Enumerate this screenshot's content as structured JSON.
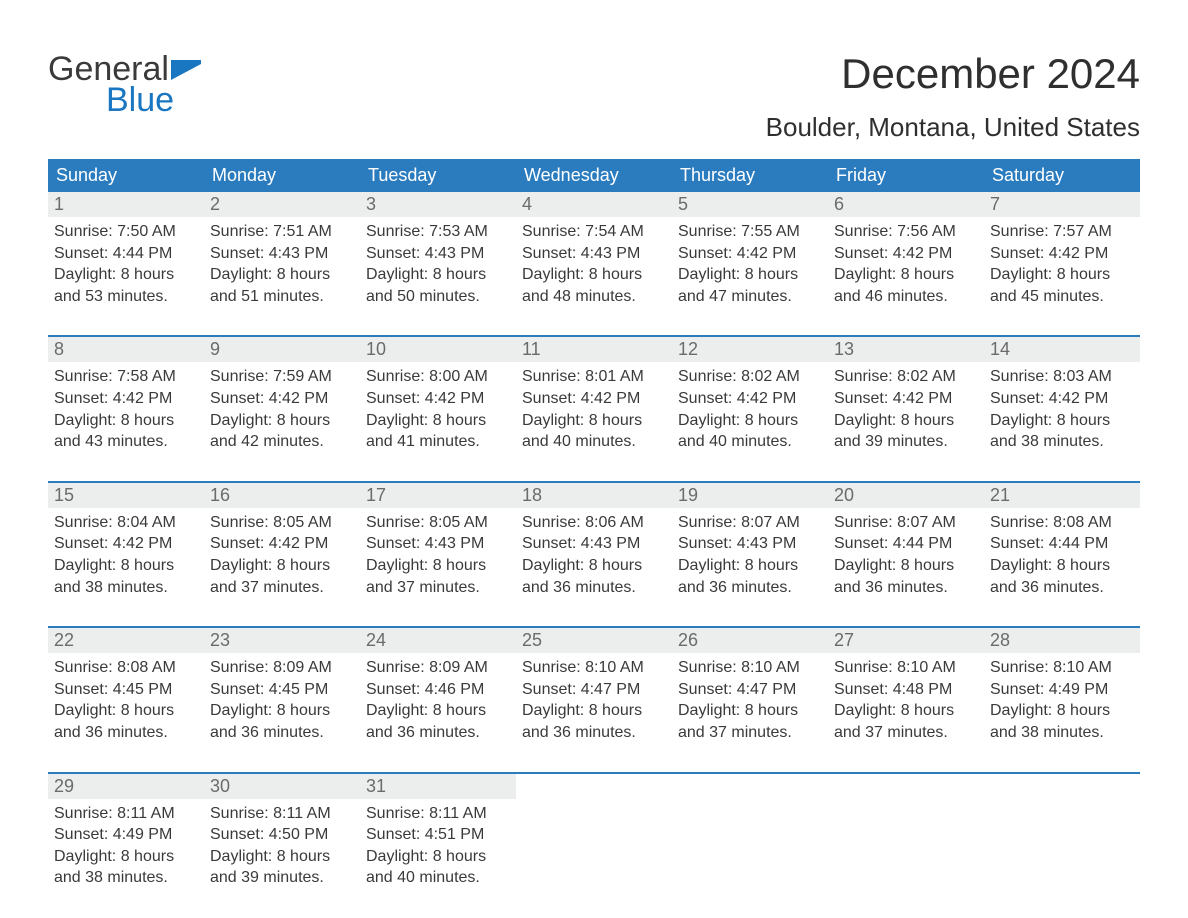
{
  "logo": {
    "text1": "General",
    "text2": "Blue",
    "flag_color": "#1976c1"
  },
  "title": "December 2024",
  "location": "Boulder, Montana, United States",
  "colors": {
    "header_bg": "#2b7cbf",
    "header_text": "#ffffff",
    "daynum_bg": "#eceded",
    "daynum_text": "#6b6b6b",
    "body_text": "#3a3a3a",
    "row_border": "#2b7cbf",
    "page_bg": "#ffffff"
  },
  "typography": {
    "title_fontsize": 42,
    "location_fontsize": 26,
    "dow_fontsize": 18,
    "daynum_fontsize": 18,
    "body_fontsize": 16,
    "logo_fontsize": 34
  },
  "day_names": [
    "Sunday",
    "Monday",
    "Tuesday",
    "Wednesday",
    "Thursday",
    "Friday",
    "Saturday"
  ],
  "weeks": [
    [
      {
        "n": "1",
        "sunrise": "Sunrise: 7:50 AM",
        "sunset": "Sunset: 4:44 PM",
        "dl1": "Daylight: 8 hours",
        "dl2": "and 53 minutes."
      },
      {
        "n": "2",
        "sunrise": "Sunrise: 7:51 AM",
        "sunset": "Sunset: 4:43 PM",
        "dl1": "Daylight: 8 hours",
        "dl2": "and 51 minutes."
      },
      {
        "n": "3",
        "sunrise": "Sunrise: 7:53 AM",
        "sunset": "Sunset: 4:43 PM",
        "dl1": "Daylight: 8 hours",
        "dl2": "and 50 minutes."
      },
      {
        "n": "4",
        "sunrise": "Sunrise: 7:54 AM",
        "sunset": "Sunset: 4:43 PM",
        "dl1": "Daylight: 8 hours",
        "dl2": "and 48 minutes."
      },
      {
        "n": "5",
        "sunrise": "Sunrise: 7:55 AM",
        "sunset": "Sunset: 4:42 PM",
        "dl1": "Daylight: 8 hours",
        "dl2": "and 47 minutes."
      },
      {
        "n": "6",
        "sunrise": "Sunrise: 7:56 AM",
        "sunset": "Sunset: 4:42 PM",
        "dl1": "Daylight: 8 hours",
        "dl2": "and 46 minutes."
      },
      {
        "n": "7",
        "sunrise": "Sunrise: 7:57 AM",
        "sunset": "Sunset: 4:42 PM",
        "dl1": "Daylight: 8 hours",
        "dl2": "and 45 minutes."
      }
    ],
    [
      {
        "n": "8",
        "sunrise": "Sunrise: 7:58 AM",
        "sunset": "Sunset: 4:42 PM",
        "dl1": "Daylight: 8 hours",
        "dl2": "and 43 minutes."
      },
      {
        "n": "9",
        "sunrise": "Sunrise: 7:59 AM",
        "sunset": "Sunset: 4:42 PM",
        "dl1": "Daylight: 8 hours",
        "dl2": "and 42 minutes."
      },
      {
        "n": "10",
        "sunrise": "Sunrise: 8:00 AM",
        "sunset": "Sunset: 4:42 PM",
        "dl1": "Daylight: 8 hours",
        "dl2": "and 41 minutes."
      },
      {
        "n": "11",
        "sunrise": "Sunrise: 8:01 AM",
        "sunset": "Sunset: 4:42 PM",
        "dl1": "Daylight: 8 hours",
        "dl2": "and 40 minutes."
      },
      {
        "n": "12",
        "sunrise": "Sunrise: 8:02 AM",
        "sunset": "Sunset: 4:42 PM",
        "dl1": "Daylight: 8 hours",
        "dl2": "and 40 minutes."
      },
      {
        "n": "13",
        "sunrise": "Sunrise: 8:02 AM",
        "sunset": "Sunset: 4:42 PM",
        "dl1": "Daylight: 8 hours",
        "dl2": "and 39 minutes."
      },
      {
        "n": "14",
        "sunrise": "Sunrise: 8:03 AM",
        "sunset": "Sunset: 4:42 PM",
        "dl1": "Daylight: 8 hours",
        "dl2": "and 38 minutes."
      }
    ],
    [
      {
        "n": "15",
        "sunrise": "Sunrise: 8:04 AM",
        "sunset": "Sunset: 4:42 PM",
        "dl1": "Daylight: 8 hours",
        "dl2": "and 38 minutes."
      },
      {
        "n": "16",
        "sunrise": "Sunrise: 8:05 AM",
        "sunset": "Sunset: 4:42 PM",
        "dl1": "Daylight: 8 hours",
        "dl2": "and 37 minutes."
      },
      {
        "n": "17",
        "sunrise": "Sunrise: 8:05 AM",
        "sunset": "Sunset: 4:43 PM",
        "dl1": "Daylight: 8 hours",
        "dl2": "and 37 minutes."
      },
      {
        "n": "18",
        "sunrise": "Sunrise: 8:06 AM",
        "sunset": "Sunset: 4:43 PM",
        "dl1": "Daylight: 8 hours",
        "dl2": "and 36 minutes."
      },
      {
        "n": "19",
        "sunrise": "Sunrise: 8:07 AM",
        "sunset": "Sunset: 4:43 PM",
        "dl1": "Daylight: 8 hours",
        "dl2": "and 36 minutes."
      },
      {
        "n": "20",
        "sunrise": "Sunrise: 8:07 AM",
        "sunset": "Sunset: 4:44 PM",
        "dl1": "Daylight: 8 hours",
        "dl2": "and 36 minutes."
      },
      {
        "n": "21",
        "sunrise": "Sunrise: 8:08 AM",
        "sunset": "Sunset: 4:44 PM",
        "dl1": "Daylight: 8 hours",
        "dl2": "and 36 minutes."
      }
    ],
    [
      {
        "n": "22",
        "sunrise": "Sunrise: 8:08 AM",
        "sunset": "Sunset: 4:45 PM",
        "dl1": "Daylight: 8 hours",
        "dl2": "and 36 minutes."
      },
      {
        "n": "23",
        "sunrise": "Sunrise: 8:09 AM",
        "sunset": "Sunset: 4:45 PM",
        "dl1": "Daylight: 8 hours",
        "dl2": "and 36 minutes."
      },
      {
        "n": "24",
        "sunrise": "Sunrise: 8:09 AM",
        "sunset": "Sunset: 4:46 PM",
        "dl1": "Daylight: 8 hours",
        "dl2": "and 36 minutes."
      },
      {
        "n": "25",
        "sunrise": "Sunrise: 8:10 AM",
        "sunset": "Sunset: 4:47 PM",
        "dl1": "Daylight: 8 hours",
        "dl2": "and 36 minutes."
      },
      {
        "n": "26",
        "sunrise": "Sunrise: 8:10 AM",
        "sunset": "Sunset: 4:47 PM",
        "dl1": "Daylight: 8 hours",
        "dl2": "and 37 minutes."
      },
      {
        "n": "27",
        "sunrise": "Sunrise: 8:10 AM",
        "sunset": "Sunset: 4:48 PM",
        "dl1": "Daylight: 8 hours",
        "dl2": "and 37 minutes."
      },
      {
        "n": "28",
        "sunrise": "Sunrise: 8:10 AM",
        "sunset": "Sunset: 4:49 PM",
        "dl1": "Daylight: 8 hours",
        "dl2": "and 38 minutes."
      }
    ],
    [
      {
        "n": "29",
        "sunrise": "Sunrise: 8:11 AM",
        "sunset": "Sunset: 4:49 PM",
        "dl1": "Daylight: 8 hours",
        "dl2": "and 38 minutes."
      },
      {
        "n": "30",
        "sunrise": "Sunrise: 8:11 AM",
        "sunset": "Sunset: 4:50 PM",
        "dl1": "Daylight: 8 hours",
        "dl2": "and 39 minutes."
      },
      {
        "n": "31",
        "sunrise": "Sunrise: 8:11 AM",
        "sunset": "Sunset: 4:51 PM",
        "dl1": "Daylight: 8 hours",
        "dl2": "and 40 minutes."
      },
      {
        "empty": true
      },
      {
        "empty": true
      },
      {
        "empty": true
      },
      {
        "empty": true
      }
    ]
  ]
}
